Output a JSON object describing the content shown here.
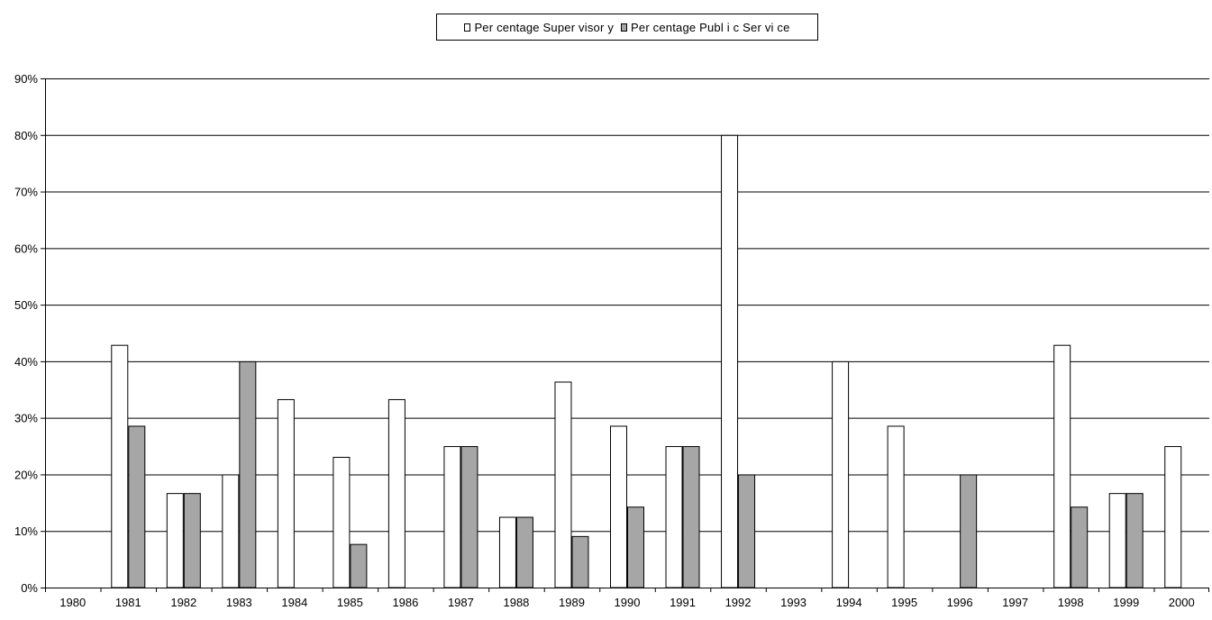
{
  "chart_data": {
    "type": "bar",
    "title": "",
    "xlabel": "",
    "ylabel": "",
    "ylim": [
      0,
      90
    ],
    "y_ticks": [
      "0%",
      "10%",
      "20%",
      "30%",
      "40%",
      "50%",
      "60%",
      "70%",
      "80%",
      "90%"
    ],
    "y_tick_values": [
      0,
      10,
      20,
      30,
      40,
      50,
      60,
      70,
      80,
      90
    ],
    "grid": true,
    "legend_position": "top-center",
    "categories": [
      "1980",
      "1981",
      "1982",
      "1983",
      "1984",
      "1985",
      "1986",
      "1987",
      "1988",
      "1989",
      "1990",
      "1991",
      "1992",
      "1993",
      "1994",
      "1995",
      "1996",
      "1997",
      "1998",
      "1999",
      "2000"
    ],
    "series": [
      {
        "name": "Per centage Super visor y",
        "color": "#ffffff",
        "values": [
          0,
          42.9,
          16.7,
          20,
          33.3,
          23.1,
          33.3,
          25,
          12.5,
          36.4,
          28.6,
          25,
          80,
          0,
          40,
          28.6,
          0,
          0,
          42.9,
          16.7,
          25
        ]
      },
      {
        "name": "Per centage Publ i c Ser vi ce",
        "color": "#a6a6a6",
        "values": [
          0,
          28.6,
          16.7,
          40,
          0,
          7.7,
          0,
          25,
          12.5,
          9.1,
          14.3,
          25,
          20,
          0,
          0,
          0,
          20,
          0,
          14.3,
          16.7,
          0
        ]
      }
    ]
  }
}
